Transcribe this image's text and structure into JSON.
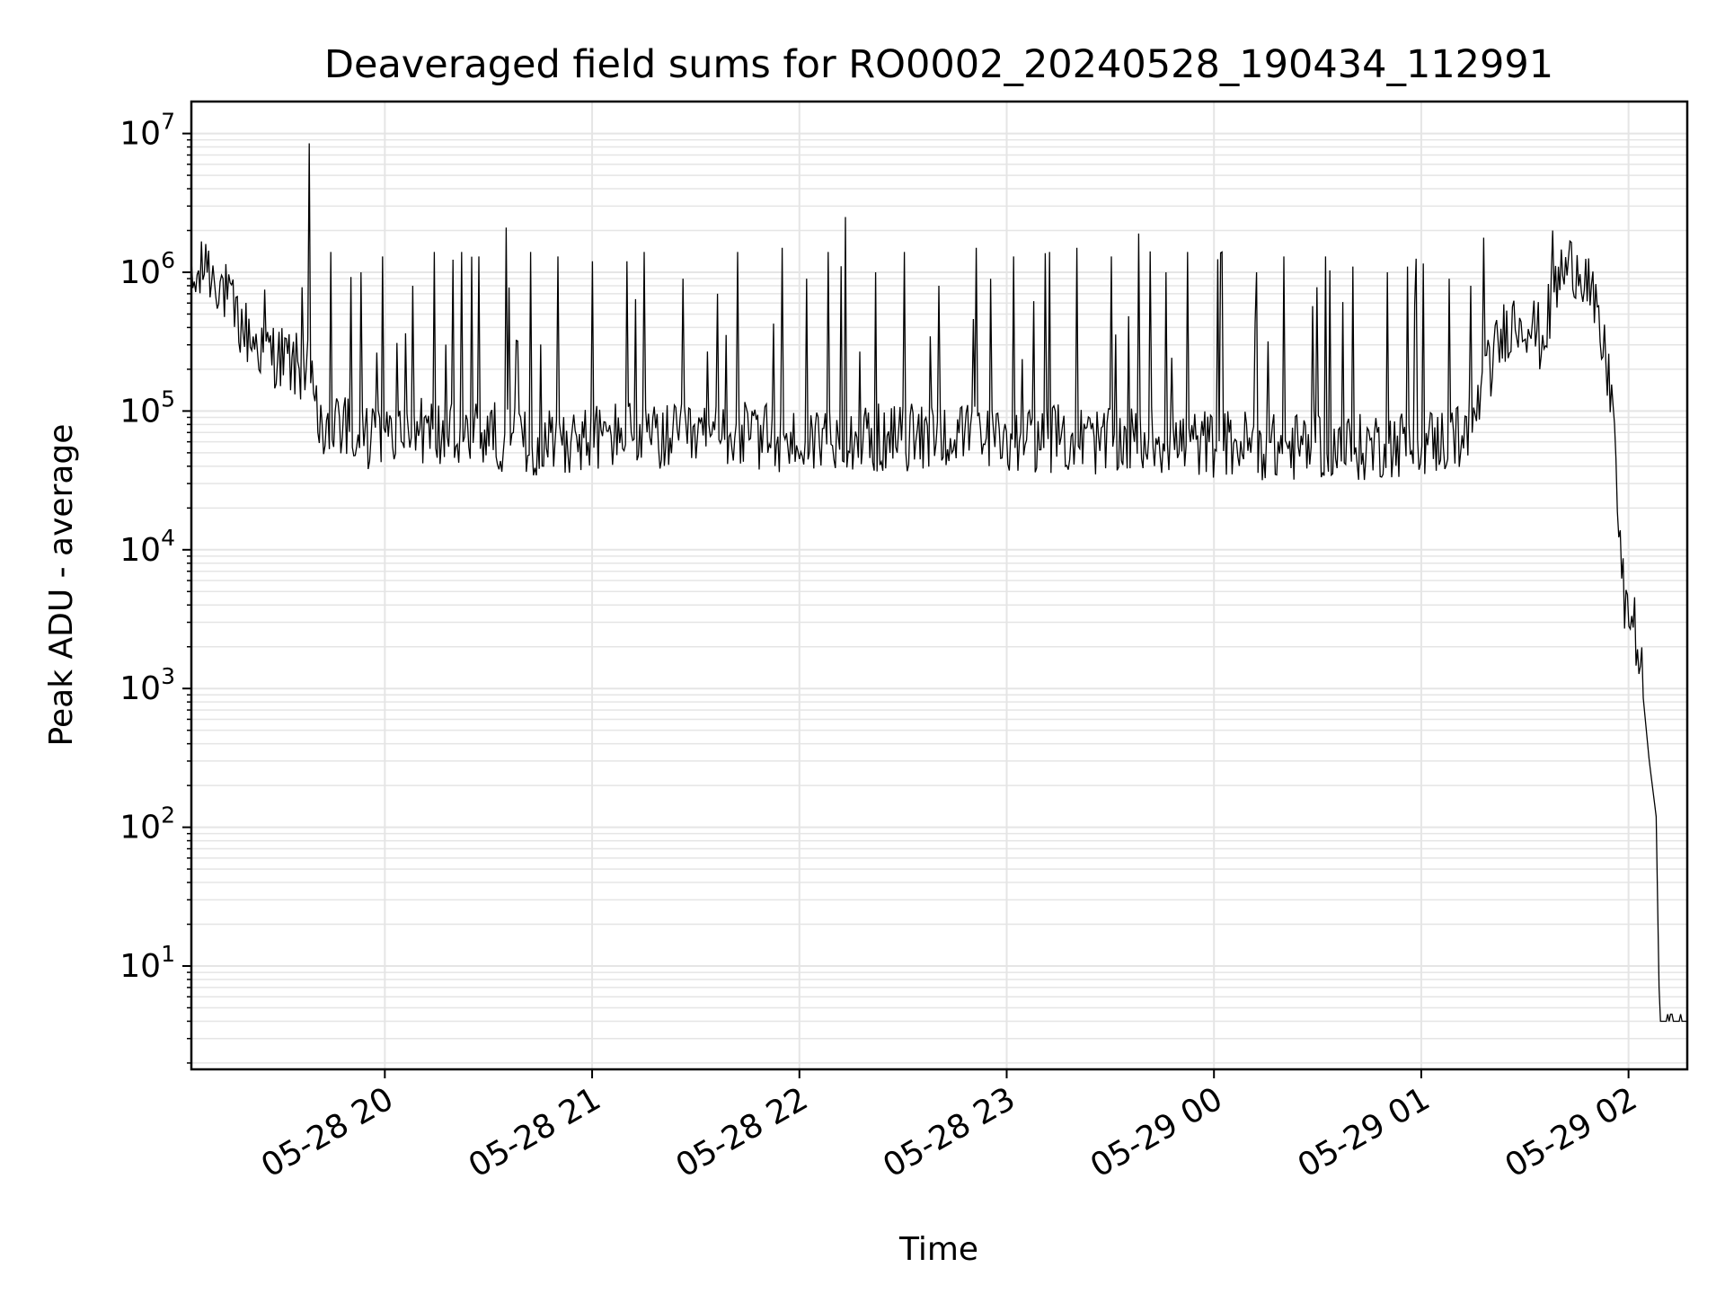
{
  "chart_data": {
    "type": "line",
    "title": "Deaveraged field sums for RO0002_20240528_190434_112991",
    "xlabel": "Time",
    "ylabel": "Peak ADU - average",
    "y_scale": "log",
    "grid": true,
    "line_color": "#000000",
    "grid_color": "#e5e5e5",
    "xlim": [
      "2024-05-28T19:04",
      "2024-05-29T02:17"
    ],
    "ylim": [
      1.8,
      17000000
    ],
    "x_ticks": [
      {
        "value": "2024-05-28T20:00",
        "label": "05-28 20"
      },
      {
        "value": "2024-05-28T21:00",
        "label": "05-28 21"
      },
      {
        "value": "2024-05-28T22:00",
        "label": "05-28 22"
      },
      {
        "value": "2024-05-28T23:00",
        "label": "05-28 23"
      },
      {
        "value": "2024-05-29T00:00",
        "label": "05-29 00"
      },
      {
        "value": "2024-05-29T01:00",
        "label": "05-29 01"
      },
      {
        "value": "2024-05-29T02:00",
        "label": "05-29 02"
      }
    ],
    "y_ticks": [
      {
        "value": 10,
        "base": "10",
        "exp": "1"
      },
      {
        "value": 100,
        "base": "10",
        "exp": "2"
      },
      {
        "value": 1000,
        "base": "10",
        "exp": "3"
      },
      {
        "value": 10000,
        "base": "10",
        "exp": "4"
      },
      {
        "value": 100000,
        "base": "10",
        "exp": "5"
      },
      {
        "value": 1000000,
        "base": "10",
        "exp": "6"
      },
      {
        "value": 10000000,
        "base": "10",
        "exp": "7"
      }
    ],
    "series": [
      {
        "x": [
          "2024-05-28T19:04",
          "2024-05-28T19:08",
          "2024-05-28T19:12",
          "2024-05-28T19:15",
          "2024-05-28T19:18",
          "2024-05-28T19:22",
          "2024-05-28T19:26",
          "2024-05-28T19:30",
          "2024-05-28T19:34",
          "2024-05-28T19:38",
          "2024-05-28T19:40",
          "2024-05-28T19:42",
          "2024-05-28T19:45",
          "2024-05-28T19:50",
          "2024-05-28T19:55",
          "2024-05-28T20:00",
          "2024-05-28T20:10",
          "2024-05-28T20:20",
          "2024-05-28T20:30",
          "2024-05-28T20:40",
          "2024-05-28T20:50",
          "2024-05-28T21:00",
          "2024-05-28T21:10",
          "2024-05-28T21:20",
          "2024-05-28T21:30",
          "2024-05-28T21:40",
          "2024-05-28T21:50",
          "2024-05-28T22:00",
          "2024-05-28T22:10",
          "2024-05-28T22:20",
          "2024-05-28T22:30",
          "2024-05-28T22:40",
          "2024-05-28T22:50",
          "2024-05-28T23:00",
          "2024-05-28T23:10",
          "2024-05-28T23:20",
          "2024-05-28T23:30",
          "2024-05-28T23:40",
          "2024-05-28T23:50",
          "2024-05-29T00:00",
          "2024-05-29T00:10",
          "2024-05-29T00:20",
          "2024-05-29T00:30",
          "2024-05-29T00:40",
          "2024-05-29T00:50",
          "2024-05-29T01:00",
          "2024-05-29T01:10",
          "2024-05-29T01:15",
          "2024-05-29T01:20",
          "2024-05-29T01:25",
          "2024-05-29T01:30",
          "2024-05-29T01:35",
          "2024-05-29T01:40",
          "2024-05-29T01:45",
          "2024-05-29T01:48",
          "2024-05-29T01:50",
          "2024-05-29T01:52",
          "2024-05-29T01:54",
          "2024-05-29T01:56",
          "2024-05-29T01:58",
          "2024-05-29T02:00",
          "2024-05-29T02:02",
          "2024-05-29T02:04",
          "2024-05-29T02:06",
          "2024-05-29T02:08",
          "2024-05-29T02:09",
          "2024-05-29T02:10",
          "2024-05-29T02:17"
        ],
        "y": [
          700000,
          1000000,
          850000,
          550000,
          400000,
          300000,
          260000,
          230000,
          200000,
          180000,
          90000,
          60000,
          75000,
          65000,
          60000,
          60000,
          70000,
          60000,
          65000,
          55000,
          60000,
          60000,
          65000,
          60000,
          60000,
          65000,
          60000,
          55000,
          65000,
          60000,
          60000,
          65000,
          60000,
          55000,
          60000,
          60000,
          55000,
          60000,
          55000,
          55000,
          55000,
          50000,
          55000,
          50000,
          55000,
          55000,
          60000,
          80000,
          200000,
          400000,
          450000,
          300000,
          900000,
          1100000,
          900000,
          500000,
          300000,
          180000,
          80000,
          5000,
          3500,
          2500,
          1000,
          300,
          120,
          4,
          4,
          4
        ]
      }
    ],
    "spikes": [
      {
        "x": "2024-05-28T19:08",
        "y": 1600000
      },
      {
        "x": "2024-05-28T19:25",
        "y": 750000
      },
      {
        "x": "2024-05-28T19:36",
        "y": 780000
      },
      {
        "x": "2024-05-28T19:38",
        "y": 8500000
      },
      {
        "x": "2024-05-28T19:44",
        "y": 1400000
      },
      {
        "x": "2024-05-28T19:53",
        "y": 1000000
      },
      {
        "x": "2024-05-28T19:59",
        "y": 1300000
      },
      {
        "x": "2024-05-28T20:08",
        "y": 800000
      },
      {
        "x": "2024-05-28T20:14",
        "y": 1400000
      },
      {
        "x": "2024-05-28T20:22",
        "y": 1400000
      },
      {
        "x": "2024-05-28T20:27",
        "y": 1300000
      },
      {
        "x": "2024-05-28T20:35",
        "y": 2100000
      },
      {
        "x": "2024-05-28T20:42",
        "y": 1400000
      },
      {
        "x": "2024-05-28T20:50",
        "y": 1300000
      },
      {
        "x": "2024-05-28T21:00",
        "y": 1200000
      },
      {
        "x": "2024-05-28T21:10",
        "y": 1200000
      },
      {
        "x": "2024-05-28T21:15",
        "y": 1400000
      },
      {
        "x": "2024-05-28T21:26",
        "y": 900000
      },
      {
        "x": "2024-05-28T21:36",
        "y": 700000
      },
      {
        "x": "2024-05-28T21:42",
        "y": 1400000
      },
      {
        "x": "2024-05-28T21:55",
        "y": 1500000
      },
      {
        "x": "2024-05-28T22:02",
        "y": 900000
      },
      {
        "x": "2024-05-28T22:08",
        "y": 1400000
      },
      {
        "x": "2024-05-28T22:13",
        "y": 2500000
      },
      {
        "x": "2024-05-28T22:22",
        "y": 1000000
      },
      {
        "x": "2024-05-28T22:30",
        "y": 1400000
      },
      {
        "x": "2024-05-28T22:40",
        "y": 800000
      },
      {
        "x": "2024-05-28T22:51",
        "y": 1500000
      },
      {
        "x": "2024-05-28T23:02",
        "y": 1300000
      },
      {
        "x": "2024-05-28T23:12",
        "y": 1400000
      },
      {
        "x": "2024-05-28T23:20",
        "y": 1500000
      },
      {
        "x": "2024-05-28T23:30",
        "y": 1300000
      },
      {
        "x": "2024-05-28T23:38",
        "y": 1900000
      },
      {
        "x": "2024-05-28T23:46",
        "y": 1000000
      },
      {
        "x": "2024-05-28T23:52",
        "y": 1400000
      },
      {
        "x": "2024-05-29T00:02",
        "y": 1400000
      },
      {
        "x": "2024-05-29T00:12",
        "y": 1000000
      },
      {
        "x": "2024-05-29T00:20",
        "y": 1300000
      },
      {
        "x": "2024-05-29T00:32",
        "y": 1300000
      },
      {
        "x": "2024-05-29T00:40",
        "y": 1100000
      },
      {
        "x": "2024-05-29T00:50",
        "y": 1000000
      },
      {
        "x": "2024-05-29T00:56",
        "y": 1100000
      },
      {
        "x": "2024-05-29T01:08",
        "y": 900000
      },
      {
        "x": "2024-05-29T01:14",
        "y": 800000
      },
      {
        "x": "2024-05-29T01:38",
        "y": 2000000
      }
    ]
  }
}
